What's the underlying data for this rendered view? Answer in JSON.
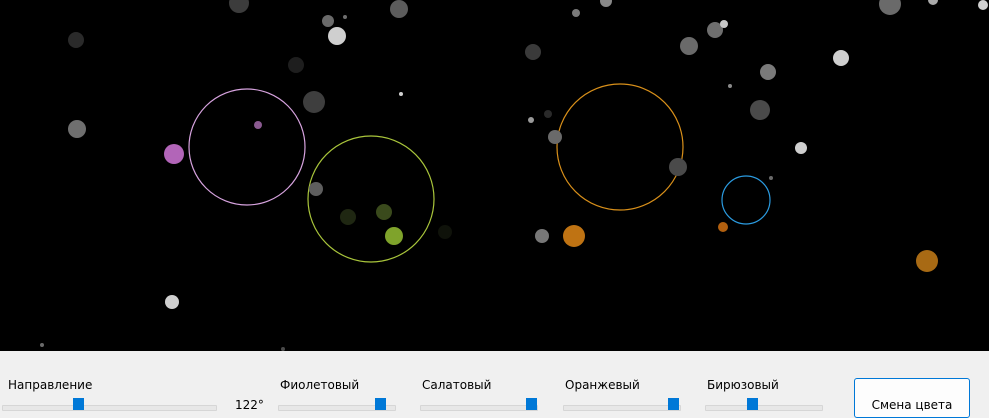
{
  "controls": {
    "direction_label": "Направление",
    "direction_value": "122°",
    "violet_label": "Фиолетовый",
    "lightgreen_label": "Салатовый",
    "orange_label": "Оранжевый",
    "turquoise_label": "Бирюзовый",
    "change_color_button": "Смена цвета"
  },
  "colors": {
    "canvas_background": "#000000",
    "panel_background": "#f0f0f0",
    "accent": "#0078d7",
    "violet": "#d7a3df",
    "lightgreen": "#a9c53b",
    "orange": "#d9901a",
    "turquoise": "#2b9be0"
  }
}
